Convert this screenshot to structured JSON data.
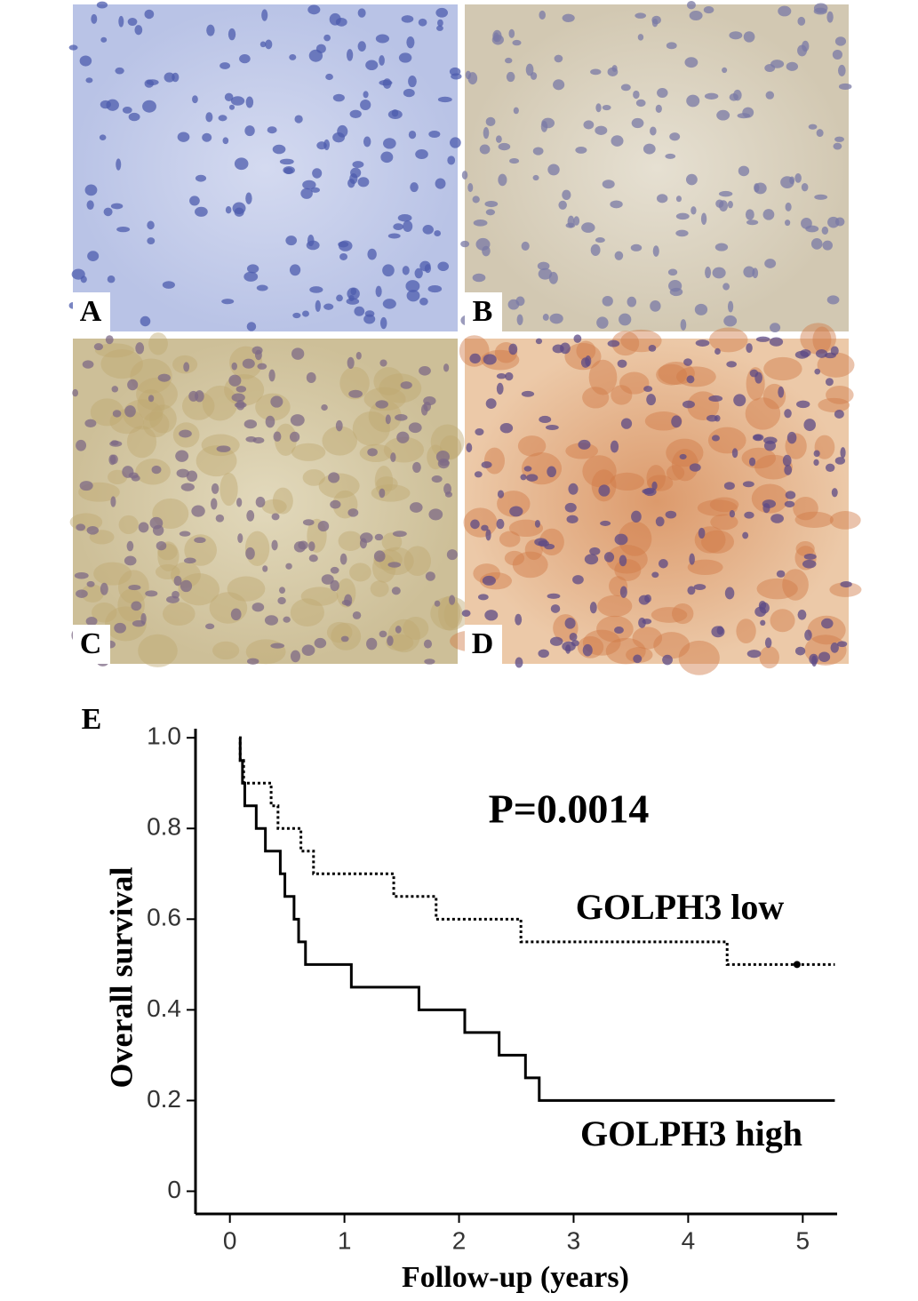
{
  "panels": [
    {
      "label": "A"
    },
    {
      "label": "B"
    },
    {
      "label": "C"
    },
    {
      "label": "D"
    }
  ],
  "chart_data": {
    "type": "line",
    "step": "post",
    "panel_label": "E",
    "x_label": "Follow-up (years)",
    "y_label": "Overall survival",
    "annotation": "P=0.0014",
    "xlim": [
      -0.3,
      5.3
    ],
    "ylim": [
      -0.05,
      1.02
    ],
    "xticks": [
      0,
      1,
      2,
      3,
      4,
      5
    ],
    "yticks": [
      0,
      0.2,
      0.4,
      0.6,
      0.8,
      {
        "value": 1,
        "label": "1.0"
      }
    ],
    "series": [
      {
        "name": "GOLPH3 high",
        "color": "#000000",
        "style": "solid",
        "x": [
          0.08,
          0.09,
          0.11,
          0.13,
          0.23,
          0.31,
          0.44,
          0.48,
          0.56,
          0.6,
          0.66,
          1.06,
          1.65,
          2.05,
          2.35,
          2.58,
          2.7,
          5.28
        ],
        "values": [
          1.0,
          0.95,
          0.9,
          0.85,
          0.8,
          0.75,
          0.7,
          0.65,
          0.6,
          0.55,
          0.5,
          0.45,
          0.4,
          0.35,
          0.3,
          0.25,
          0.2,
          0.2
        ]
      },
      {
        "name": "GOLPH3 low",
        "color": "#000000",
        "style": "dotted",
        "x": [
          0.08,
          0.09,
          0.12,
          0.36,
          0.42,
          0.62,
          0.73,
          1.43,
          1.8,
          2.54,
          4.34,
          5.28
        ],
        "values": [
          1.0,
          0.95,
          0.9,
          0.85,
          0.8,
          0.75,
          0.7,
          0.65,
          0.6,
          0.55,
          0.5,
          0.5
        ],
        "censored_x": [
          4.95
        ],
        "censored_values": [
          0.5
        ]
      }
    ]
  }
}
